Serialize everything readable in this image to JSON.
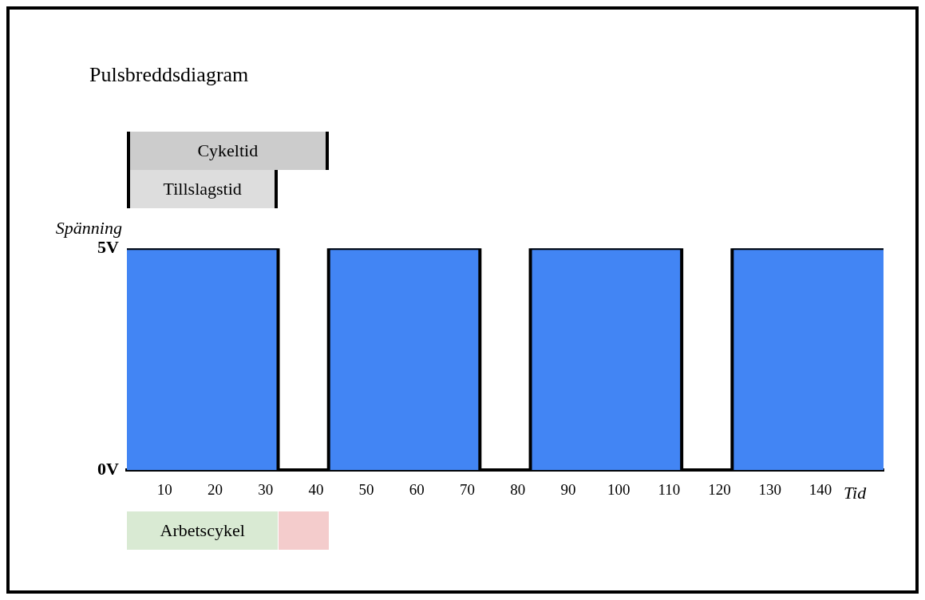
{
  "chart_data": {
    "type": "area",
    "title": "Pulsbreddsdiagram",
    "xlabel": "Tid",
    "ylabel": "Spänning",
    "series": [
      {
        "color": "#4285f4",
        "x": [
          2.5,
          32.5,
          42.5,
          72.5,
          82.5,
          112.5,
          122.5,
          152.5
        ],
        "values": [
          5,
          0,
          5,
          0,
          5,
          0,
          5,
          5
        ]
      }
    ],
    "line_style": "solid",
    "xlim": [
      2.5,
      152.5
    ],
    "xticks": [
      10,
      20,
      30,
      40,
      50,
      60,
      70,
      80,
      90,
      100,
      110,
      120,
      130,
      140
    ],
    "ylim": [
      0,
      5
    ],
    "yticks": [
      {
        "value": 0,
        "label": "0V"
      },
      {
        "value": 5,
        "label": "5V"
      }
    ],
    "annotations": [
      "Cykeltid",
      "Tillslagstid",
      "Arbetscykel"
    ],
    "grid": false,
    "legend": false
  }
}
